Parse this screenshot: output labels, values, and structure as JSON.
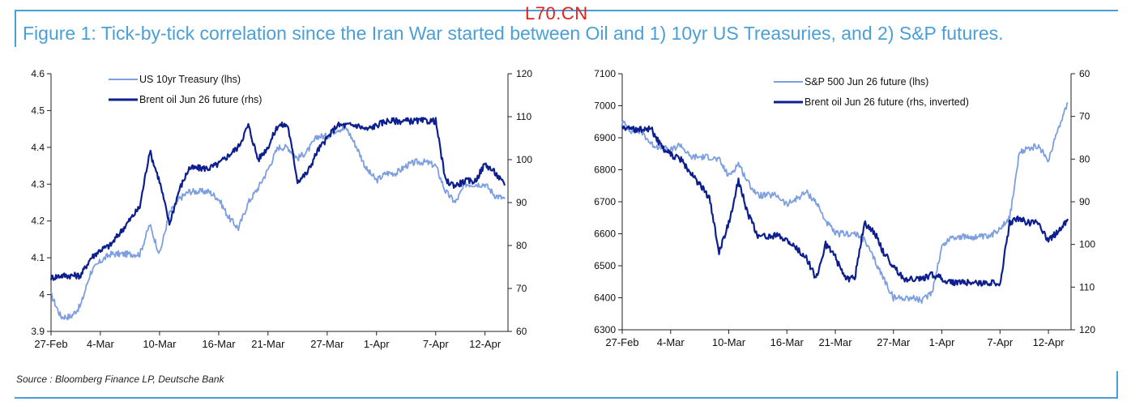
{
  "header": {
    "title": "Figure 1: Tick-by-tick correlation since the Iran War started between Oil and 1) 10yr US Treasuries, and 2) S&P futures.",
    "watermark": "L70.CN"
  },
  "footer": {
    "source": "Source : Bloomberg Finance LP, Deutsche Bank"
  },
  "colors": {
    "title": "#4a9fd8",
    "light_series": "#7d9fe0",
    "dark_series": "#0d1f8f",
    "watermark": "#e2231a"
  },
  "chart_data": [
    {
      "type": "line",
      "x_tick_labels": [
        "27-Feb",
        "4-Mar",
        "10-Mar",
        "16-Mar",
        "21-Mar",
        "27-Mar",
        "1-Apr",
        "7-Apr",
        "12-Apr"
      ],
      "left_axis": {
        "ticks": [
          "3.9",
          "4",
          "4.1",
          "4.2",
          "4.3",
          "4.4",
          "4.5",
          "4.6"
        ],
        "ylim": [
          3.9,
          4.6
        ]
      },
      "right_axis": {
        "ticks": [
          "60",
          "70",
          "80",
          "90",
          "100",
          "110",
          "120"
        ],
        "ylim": [
          60,
          120
        ],
        "inverted": false
      },
      "legend_position": "top-left",
      "grid": false,
      "series": [
        {
          "name": "US 10yr Treasury (lhs)",
          "axis": "left",
          "color": "#7d9fe0",
          "x": [
            "27-Feb",
            "28-Feb",
            "1-Mar",
            "2-Mar",
            "3-Mar",
            "4-Mar",
            "5-Mar",
            "6-Mar",
            "7-Mar",
            "8-Mar",
            "9-Mar",
            "10-Mar",
            "11-Mar",
            "12-Mar",
            "13-Mar",
            "14-Mar",
            "15-Mar",
            "16-Mar",
            "17-Mar",
            "18-Mar",
            "19-Mar",
            "20-Mar",
            "21-Mar",
            "22-Mar",
            "23-Mar",
            "24-Mar",
            "25-Mar",
            "26-Mar",
            "27-Mar",
            "28-Mar",
            "29-Mar",
            "30-Mar",
            "31-Mar",
            "1-Apr",
            "2-Apr",
            "3-Apr",
            "4-Apr",
            "5-Apr",
            "6-Apr",
            "7-Apr",
            "8-Apr",
            "9-Apr",
            "10-Apr",
            "11-Apr",
            "12-Apr",
            "13-Apr",
            "14-Apr"
          ],
          "values": [
            4.0,
            3.94,
            3.94,
            3.97,
            4.06,
            4.09,
            4.11,
            4.11,
            4.11,
            4.11,
            4.19,
            4.11,
            4.22,
            4.26,
            4.28,
            4.28,
            4.28,
            4.26,
            4.21,
            4.18,
            4.25,
            4.29,
            4.34,
            4.4,
            4.4,
            4.37,
            4.39,
            4.43,
            4.43,
            4.45,
            4.45,
            4.4,
            4.34,
            4.31,
            4.33,
            4.33,
            4.35,
            4.36,
            4.36,
            4.35,
            4.28,
            4.25,
            4.3,
            4.3,
            4.3,
            4.27,
            4.26
          ]
        },
        {
          "name": "Brent oil Jun 26 future (rhs)",
          "axis": "right",
          "color": "#0d1f8f",
          "x": [
            "27-Feb",
            "28-Feb",
            "1-Mar",
            "2-Mar",
            "3-Mar",
            "4-Mar",
            "5-Mar",
            "6-Mar",
            "7-Mar",
            "8-Mar",
            "9-Mar",
            "10-Mar",
            "11-Mar",
            "12-Mar",
            "13-Mar",
            "14-Mar",
            "15-Mar",
            "16-Mar",
            "17-Mar",
            "18-Mar",
            "19-Mar",
            "20-Mar",
            "21-Mar",
            "22-Mar",
            "23-Mar",
            "24-Mar",
            "25-Mar",
            "26-Mar",
            "27-Mar",
            "28-Mar",
            "29-Mar",
            "30-Mar",
            "31-Mar",
            "1-Apr",
            "2-Apr",
            "3-Apr",
            "4-Apr",
            "5-Apr",
            "6-Apr",
            "7-Apr",
            "8-Apr",
            "9-Apr",
            "10-Apr",
            "11-Apr",
            "12-Apr",
            "13-Apr",
            "14-Apr"
          ],
          "values": [
            72.5,
            73,
            73,
            73,
            77,
            79,
            80,
            83,
            86,
            89,
            102,
            95,
            85,
            93,
            98,
            98,
            98,
            99,
            101,
            103,
            108,
            100,
            103,
            108,
            108,
            95,
            97,
            102,
            105,
            108,
            108,
            108,
            107,
            108,
            109,
            109,
            109,
            109,
            109,
            109,
            95,
            94,
            95,
            95,
            99,
            97,
            94
          ]
        }
      ]
    },
    {
      "type": "line",
      "x_tick_labels": [
        "27-Feb",
        "4-Mar",
        "10-Mar",
        "16-Mar",
        "21-Mar",
        "27-Mar",
        "1-Apr",
        "7-Apr",
        "12-Apr"
      ],
      "left_axis": {
        "ticks": [
          "6300",
          "6400",
          "6500",
          "6600",
          "6700",
          "6800",
          "6900",
          "7000",
          "7100"
        ],
        "ylim": [
          6300,
          7100
        ]
      },
      "right_axis": {
        "ticks": [
          "60",
          "70",
          "80",
          "90",
          "100",
          "110",
          "120"
        ],
        "ylim": [
          60,
          120
        ],
        "inverted": true
      },
      "legend_position": "top-right",
      "grid": false,
      "series": [
        {
          "name": "S&P 500 Jun 26 future (lhs)",
          "axis": "left",
          "color": "#7d9fe0",
          "x": [
            "27-Feb",
            "28-Feb",
            "1-Mar",
            "2-Mar",
            "3-Mar",
            "4-Mar",
            "5-Mar",
            "6-Mar",
            "7-Mar",
            "8-Mar",
            "9-Mar",
            "10-Mar",
            "11-Mar",
            "12-Mar",
            "13-Mar",
            "14-Mar",
            "15-Mar",
            "16-Mar",
            "17-Mar",
            "18-Mar",
            "19-Mar",
            "20-Mar",
            "21-Mar",
            "22-Mar",
            "23-Mar",
            "24-Mar",
            "25-Mar",
            "26-Mar",
            "27-Mar",
            "28-Mar",
            "29-Mar",
            "30-Mar",
            "31-Mar",
            "1-Apr",
            "2-Apr",
            "3-Apr",
            "4-Apr",
            "5-Apr",
            "6-Apr",
            "7-Apr",
            "8-Apr",
            "9-Apr",
            "10-Apr",
            "11-Apr",
            "12-Apr",
            "13-Apr",
            "14-Apr"
          ],
          "values": [
            6950,
            6920,
            6920,
            6880,
            6870,
            6860,
            6880,
            6840,
            6840,
            6840,
            6830,
            6780,
            6820,
            6760,
            6720,
            6720,
            6720,
            6690,
            6710,
            6730,
            6700,
            6640,
            6600,
            6600,
            6600,
            6580,
            6520,
            6460,
            6400,
            6400,
            6400,
            6390,
            6420,
            6560,
            6590,
            6590,
            6590,
            6590,
            6590,
            6620,
            6650,
            6850,
            6870,
            6870,
            6830,
            6930,
            7010
          ]
        },
        {
          "name": "Brent oil Jun 26 future (rhs, inverted)",
          "axis": "right",
          "color": "#0d1f8f",
          "x": [
            "27-Feb",
            "28-Feb",
            "1-Mar",
            "2-Mar",
            "3-Mar",
            "4-Mar",
            "5-Mar",
            "6-Mar",
            "7-Mar",
            "8-Mar",
            "9-Mar",
            "10-Mar",
            "11-Mar",
            "12-Mar",
            "13-Mar",
            "14-Mar",
            "15-Mar",
            "16-Mar",
            "17-Mar",
            "18-Mar",
            "19-Mar",
            "20-Mar",
            "21-Mar",
            "22-Mar",
            "23-Mar",
            "24-Mar",
            "25-Mar",
            "26-Mar",
            "27-Mar",
            "28-Mar",
            "29-Mar",
            "30-Mar",
            "31-Mar",
            "1-Apr",
            "2-Apr",
            "3-Apr",
            "4-Apr",
            "5-Apr",
            "6-Apr",
            "7-Apr",
            "8-Apr",
            "9-Apr",
            "10-Apr",
            "11-Apr",
            "12-Apr",
            "13-Apr",
            "14-Apr"
          ],
          "values": [
            72.5,
            73,
            73,
            73,
            77,
            79,
            80,
            83,
            86,
            89,
            102,
            95,
            85,
            93,
            98,
            98,
            98,
            99,
            101,
            103,
            108,
            100,
            103,
            108,
            108,
            95,
            97,
            102,
            105,
            108,
            108,
            108,
            107,
            108,
            109,
            109,
            109,
            109,
            109,
            109,
            95,
            94,
            95,
            95,
            99,
            97,
            94
          ]
        }
      ]
    }
  ]
}
